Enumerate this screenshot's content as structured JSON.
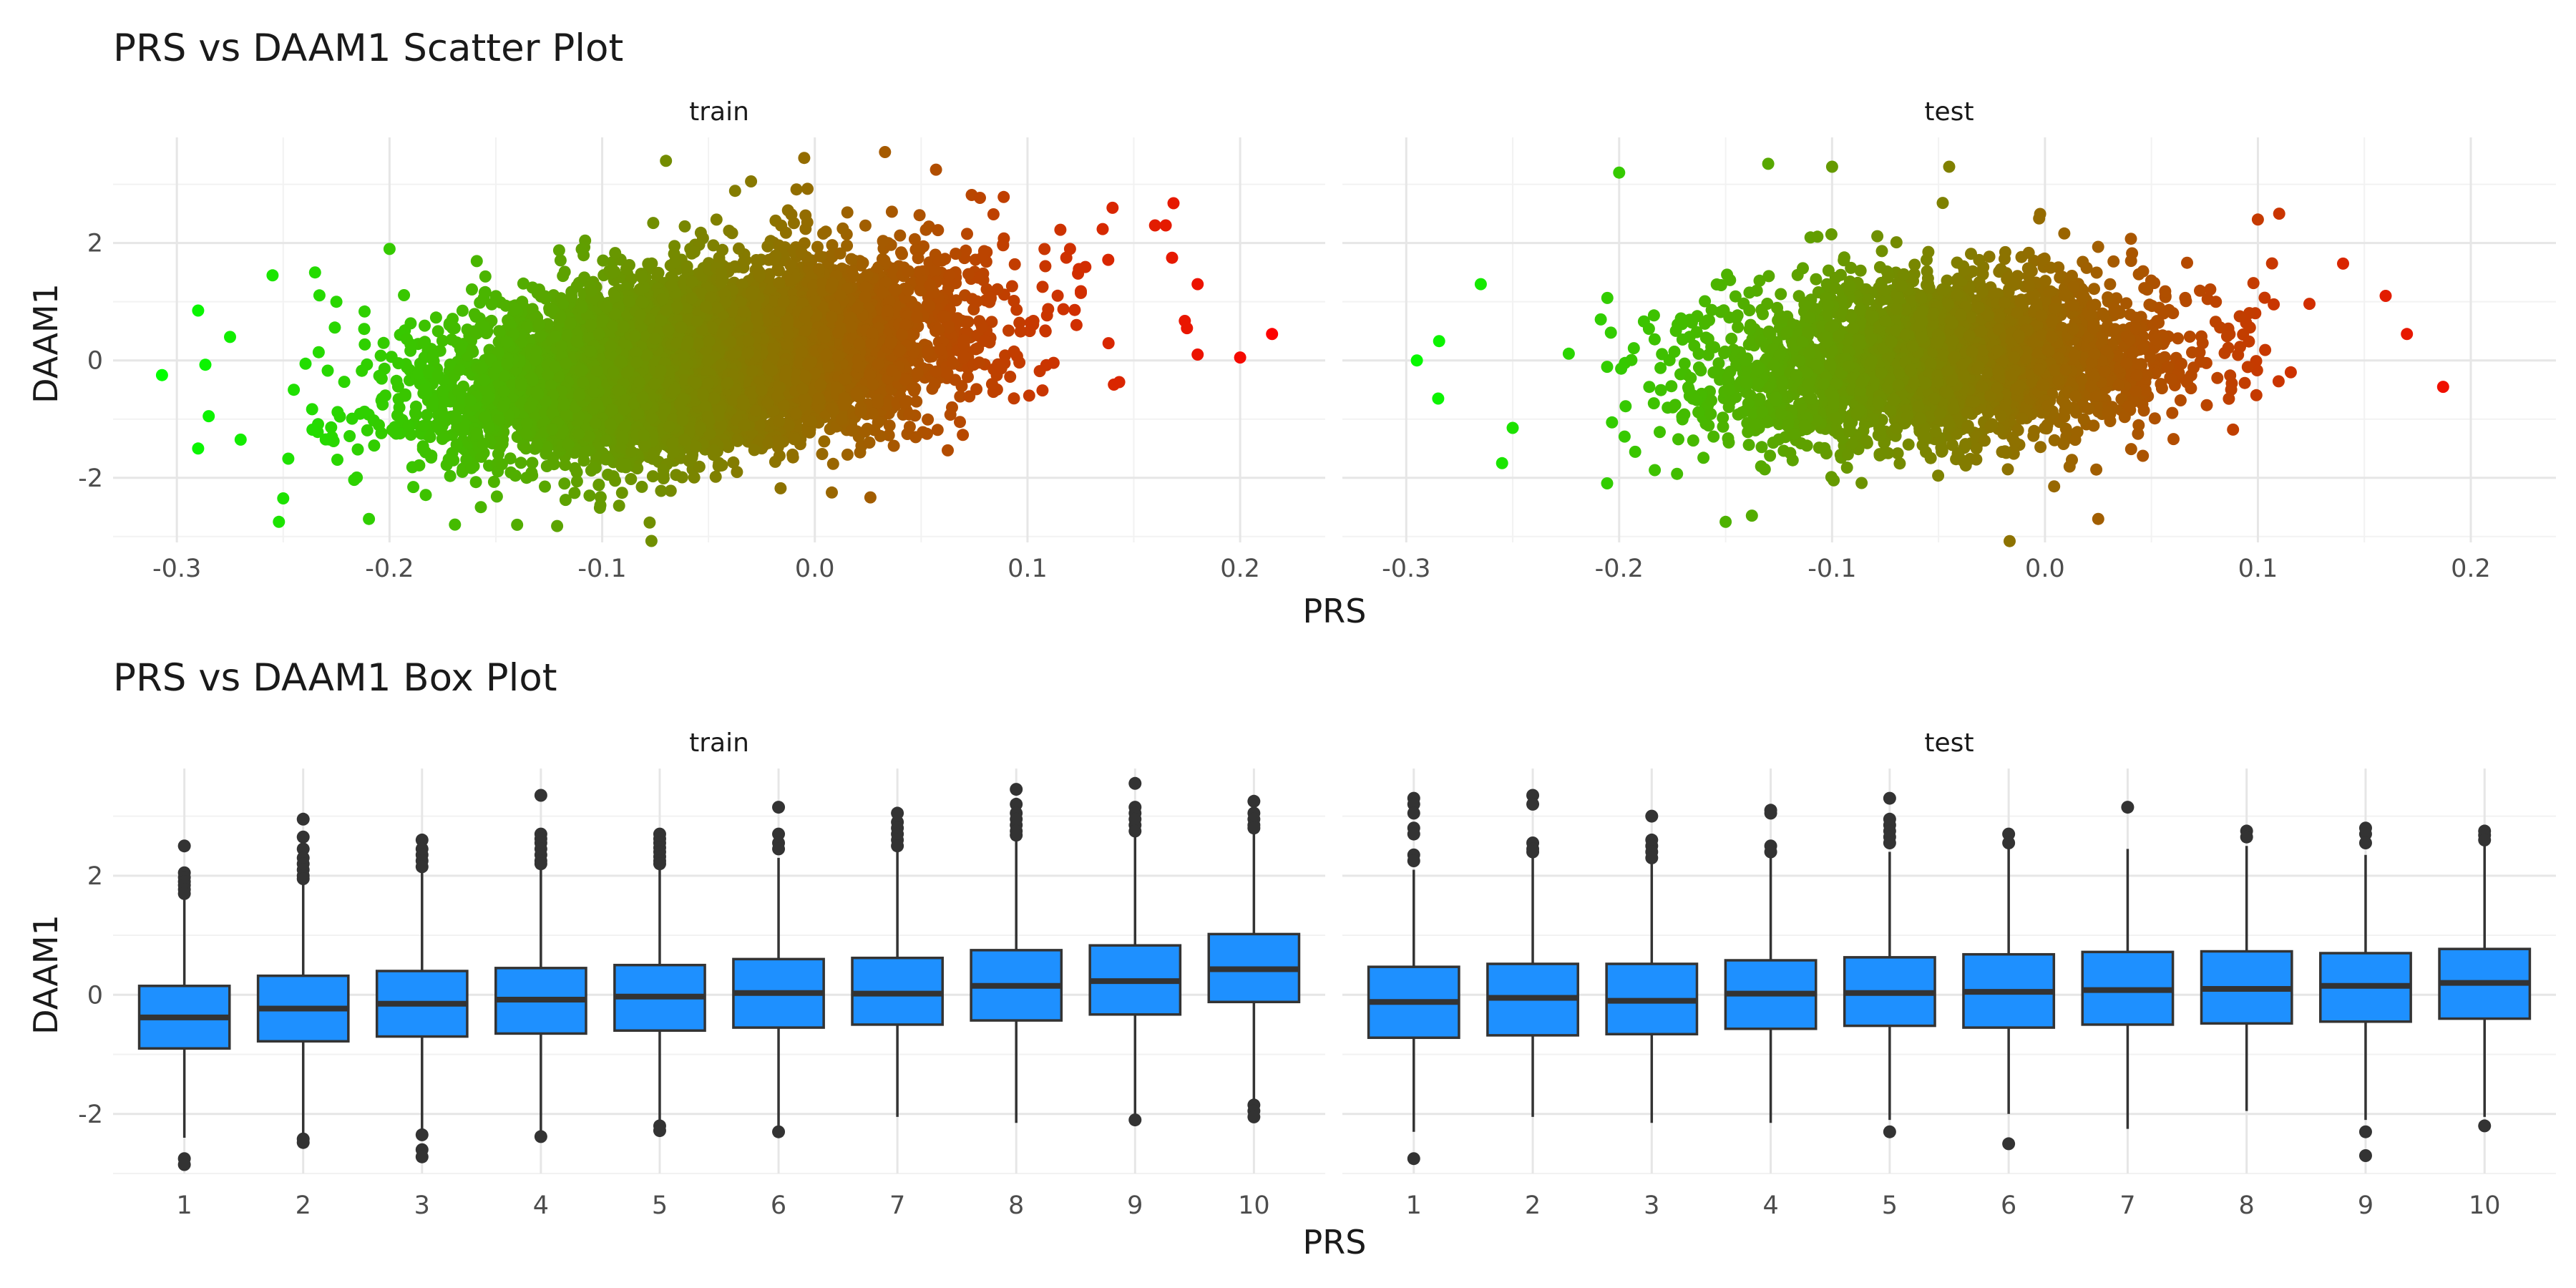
{
  "chart_data": [
    {
      "type": "scatter",
      "title": "PRS vs DAAM1 Scatter Plot",
      "xlabel": "PRS",
      "ylabel": "DAAM1",
      "grid": true,
      "color_scale": {
        "low": "#00ff00",
        "high": "#ff0000",
        "mapped_to": "PRS"
      },
      "panels": [
        {
          "name": "train",
          "xlim": [
            -0.33,
            0.24
          ],
          "ylim": [
            -3.1,
            3.8
          ],
          "x_ticks": [
            -0.3,
            -0.2,
            -0.1,
            0.0,
            0.1,
            0.2
          ],
          "x_tick_labels": [
            "-0.3",
            "-0.2",
            "-0.1",
            "0.0",
            "0.1",
            "0.2"
          ],
          "y_ticks": [
            -2,
            0,
            2
          ],
          "y_tick_labels": [
            "-2",
            "0",
            "2"
          ],
          "cloud": {
            "n": 7000,
            "x_mean": -0.055,
            "x_sd": 0.058,
            "y_mean": 0.0,
            "y_sd": 0.95,
            "slope": 5.0
          },
          "points": [
            {
              "x": -0.307,
              "y": -0.25
            },
            {
              "x": -0.29,
              "y": 0.85
            },
            {
              "x": -0.29,
              "y": -1.5
            },
            {
              "x": -0.285,
              "y": -0.95
            },
            {
              "x": -0.275,
              "y": 0.4
            },
            {
              "x": -0.27,
              "y": -1.35
            },
            {
              "x": -0.255,
              "y": 1.45
            },
            {
              "x": -0.252,
              "y": -2.75
            },
            {
              "x": -0.25,
              "y": -2.35
            },
            {
              "x": -0.245,
              "y": -0.5
            },
            {
              "x": -0.235,
              "y": 1.5
            },
            {
              "x": -0.225,
              "y": 1.0
            },
            {
              "x": -0.2,
              "y": 1.9
            },
            {
              "x": -0.14,
              "y": -2.8
            },
            {
              "x": -0.07,
              "y": 3.4
            },
            {
              "x": -0.03,
              "y": 3.05
            },
            {
              "x": -0.005,
              "y": 3.45
            },
            {
              "x": 0.033,
              "y": 3.55
            },
            {
              "x": 0.057,
              "y": 3.25
            },
            {
              "x": 0.12,
              "y": 1.9
            },
            {
              "x": 0.14,
              "y": 2.6
            },
            {
              "x": 0.16,
              "y": 2.3
            },
            {
              "x": 0.165,
              "y": 2.3
            },
            {
              "x": 0.168,
              "y": 1.75
            },
            {
              "x": 0.175,
              "y": 0.55
            },
            {
              "x": 0.18,
              "y": 1.3
            },
            {
              "x": 0.18,
              "y": 0.1
            },
            {
              "x": 0.2,
              "y": 0.05
            },
            {
              "x": 0.215,
              "y": 0.45
            }
          ]
        },
        {
          "name": "test",
          "xlim": [
            -0.33,
            0.24
          ],
          "ylim": [
            -3.1,
            3.8
          ],
          "x_ticks": [
            -0.3,
            -0.2,
            -0.1,
            0.0,
            0.1,
            0.2
          ],
          "x_tick_labels": [
            "-0.3",
            "-0.2",
            "-0.1",
            "0.0",
            "0.1",
            "0.2"
          ],
          "y_ticks": [
            -2,
            0,
            2
          ],
          "y_tick_labels": [
            "-2",
            "0",
            "2"
          ],
          "cloud": {
            "n": 3000,
            "x_mean": -0.05,
            "x_sd": 0.055,
            "y_mean": 0.0,
            "y_sd": 0.9,
            "slope": 2.0
          },
          "points": [
            {
              "x": -0.295,
              "y": 0.0
            },
            {
              "x": -0.285,
              "y": -0.65
            },
            {
              "x": -0.265,
              "y": 1.3
            },
            {
              "x": -0.255,
              "y": -1.75
            },
            {
              "x": -0.25,
              "y": -1.15
            },
            {
              "x": -0.2,
              "y": 3.2
            },
            {
              "x": -0.15,
              "y": -2.75
            },
            {
              "x": -0.13,
              "y": 3.35
            },
            {
              "x": -0.1,
              "y": 3.3
            },
            {
              "x": -0.045,
              "y": 3.3
            },
            {
              "x": 0.025,
              "y": -2.7
            },
            {
              "x": 0.1,
              "y": 2.4
            },
            {
              "x": 0.11,
              "y": 2.5
            },
            {
              "x": 0.14,
              "y": 1.65
            },
            {
              "x": 0.16,
              "y": 1.1
            },
            {
              "x": 0.17,
              "y": 0.45
            },
            {
              "x": 0.187,
              "y": -0.45
            }
          ]
        }
      ]
    },
    {
      "type": "box",
      "title": "PRS vs DAAM1 Box Plot",
      "xlabel": "PRS",
      "ylabel": "DAAM1",
      "grid": true,
      "box_fill": "#1e90ff",
      "box_line": "#333333",
      "categories": [
        "1",
        "2",
        "3",
        "4",
        "5",
        "6",
        "7",
        "8",
        "9",
        "10"
      ],
      "panels": [
        {
          "name": "train",
          "ylim": [
            -3.0,
            3.8
          ],
          "y_ticks": [
            -2,
            0,
            2
          ],
          "y_tick_labels": [
            "-2",
            "0",
            "2"
          ],
          "boxes": [
            {
              "q1": -0.9,
              "median": -0.38,
              "q3": 0.15,
              "whisker_low": -2.4,
              "whisker_high": 1.65,
              "outliers": [
                2.5,
                2.05,
                1.97,
                1.9,
                1.84,
                1.77,
                1.7,
                -2.75,
                -2.85
              ]
            },
            {
              "q1": -0.78,
              "median": -0.23,
              "q3": 0.32,
              "whisker_low": -2.35,
              "whisker_high": 1.9,
              "outliers": [
                2.95,
                2.65,
                2.45,
                2.3,
                2.2,
                2.1,
                2.0,
                1.95,
                -2.42,
                -2.48
              ]
            },
            {
              "q1": -0.7,
              "median": -0.15,
              "q3": 0.4,
              "whisker_low": -2.3,
              "whisker_high": 2.05,
              "outliers": [
                2.6,
                2.45,
                2.35,
                2.25,
                2.15,
                -2.35,
                -2.6,
                -2.72
              ]
            },
            {
              "q1": -0.65,
              "median": -0.08,
              "q3": 0.45,
              "whisker_low": -2.3,
              "whisker_high": 2.15,
              "outliers": [
                3.35,
                2.7,
                2.62,
                2.55,
                2.45,
                2.35,
                2.25,
                2.2,
                -2.38
              ]
            },
            {
              "q1": -0.6,
              "median": -0.03,
              "q3": 0.5,
              "whisker_low": -2.1,
              "whisker_high": 2.15,
              "outliers": [
                2.7,
                2.62,
                2.55,
                2.47,
                2.4,
                2.32,
                2.25,
                2.2,
                -2.2,
                -2.28
              ]
            },
            {
              "q1": -0.55,
              "median": 0.03,
              "q3": 0.6,
              "whisker_low": -2.2,
              "whisker_high": 2.3,
              "outliers": [
                3.15,
                2.7,
                2.55,
                2.45,
                -2.3
              ]
            },
            {
              "q1": -0.5,
              "median": 0.02,
              "q3": 0.62,
              "whisker_low": -2.05,
              "whisker_high": 2.4,
              "outliers": [
                3.05,
                2.9,
                2.8,
                2.7,
                2.6,
                2.5
              ]
            },
            {
              "q1": -0.43,
              "median": 0.15,
              "q3": 0.75,
              "whisker_low": -2.15,
              "whisker_high": 2.6,
              "outliers": [
                3.45,
                3.2,
                3.05,
                2.95,
                2.85,
                2.75,
                2.68
              ]
            },
            {
              "q1": -0.33,
              "median": 0.23,
              "q3": 0.83,
              "whisker_low": -2.0,
              "whisker_high": 2.65,
              "outliers": [
                3.55,
                3.15,
                3.05,
                2.95,
                2.85,
                2.75,
                -2.1
              ]
            },
            {
              "q1": -0.12,
              "median": 0.43,
              "q3": 1.02,
              "whisker_low": -1.8,
              "whisker_high": 2.75,
              "outliers": [
                3.25,
                3.05,
                2.95,
                2.85,
                2.8,
                -1.85,
                -1.95,
                -2.05
              ]
            }
          ]
        },
        {
          "name": "test",
          "ylim": [
            -3.0,
            3.8
          ],
          "y_ticks": [
            -2,
            0,
            2
          ],
          "y_tick_labels": [
            "-2",
            "0",
            "2"
          ],
          "boxes": [
            {
              "q1": -0.72,
              "median": -0.12,
              "q3": 0.47,
              "whisker_low": -2.3,
              "whisker_high": 2.1,
              "outliers": [
                3.3,
                3.2,
                3.05,
                2.8,
                2.7,
                2.35,
                2.25,
                -2.75
              ]
            },
            {
              "q1": -0.68,
              "median": -0.05,
              "q3": 0.52,
              "whisker_low": -2.05,
              "whisker_high": 2.3,
              "outliers": [
                3.35,
                3.2,
                2.55,
                2.45,
                2.4
              ]
            },
            {
              "q1": -0.66,
              "median": -0.1,
              "q3": 0.52,
              "whisker_low": -2.15,
              "whisker_high": 2.25,
              "outliers": [
                3.0,
                2.6,
                2.5,
                2.4,
                2.3
              ]
            },
            {
              "q1": -0.57,
              "median": 0.02,
              "q3": 0.58,
              "whisker_low": -2.15,
              "whisker_high": 2.3,
              "outliers": [
                3.1,
                3.05,
                2.5,
                2.4
              ]
            },
            {
              "q1": -0.52,
              "median": 0.03,
              "q3": 0.63,
              "whisker_low": -2.1,
              "whisker_high": 2.4,
              "outliers": [
                3.3,
                2.95,
                2.85,
                2.75,
                2.65,
                2.55,
                -2.3
              ]
            },
            {
              "q1": -0.55,
              "median": 0.05,
              "q3": 0.68,
              "whisker_low": -2.0,
              "whisker_high": 2.5,
              "outliers": [
                2.7,
                2.55,
                -2.5
              ]
            },
            {
              "q1": -0.5,
              "median": 0.08,
              "q3": 0.72,
              "whisker_low": -2.25,
              "whisker_high": 2.45,
              "outliers": [
                3.15
              ]
            },
            {
              "q1": -0.48,
              "median": 0.1,
              "q3": 0.73,
              "whisker_low": -1.95,
              "whisker_high": 2.5,
              "outliers": [
                2.75,
                2.65
              ]
            },
            {
              "q1": -0.45,
              "median": 0.15,
              "q3": 0.7,
              "whisker_low": -2.1,
              "whisker_high": 2.35,
              "outliers": [
                2.8,
                2.7,
                2.55,
                -2.3,
                -2.7
              ]
            },
            {
              "q1": -0.4,
              "median": 0.2,
              "q3": 0.77,
              "whisker_low": -2.05,
              "whisker_high": 2.5,
              "outliers": [
                2.75,
                2.68,
                2.6,
                -2.2
              ]
            }
          ]
        }
      ]
    }
  ]
}
